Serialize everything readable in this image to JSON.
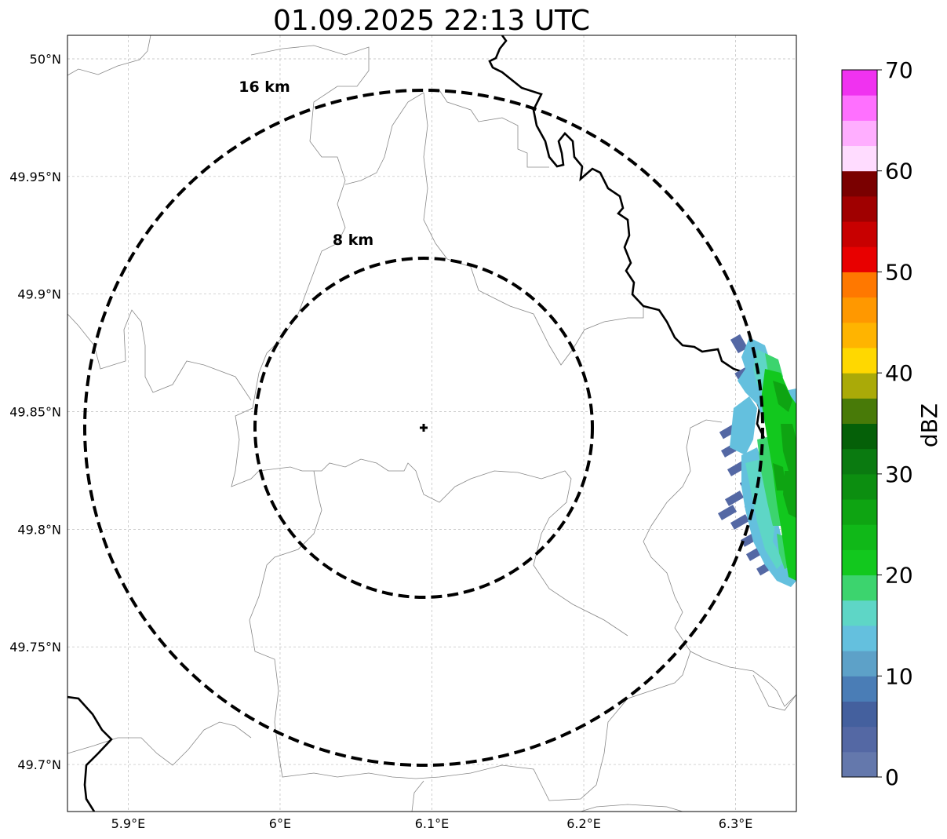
{
  "title": "01.09.2025 22:13 UTC",
  "map": {
    "lon_range": [
      5.86,
      6.34
    ],
    "lat_range": [
      49.68,
      50.01
    ],
    "x_ticks": [
      {
        "value": 5.9,
        "label": "5.9°E"
      },
      {
        "value": 6.0,
        "label": "6°E"
      },
      {
        "value": 6.1,
        "label": "6.1°E"
      },
      {
        "value": 6.2,
        "label": "6.2°E"
      },
      {
        "value": 6.3,
        "label": "6.3°E"
      }
    ],
    "y_ticks": [
      {
        "value": 50.0,
        "label": "50°N"
      },
      {
        "value": 49.95,
        "label": "49.95°N"
      },
      {
        "value": 49.9,
        "label": "49.9°N"
      },
      {
        "value": 49.85,
        "label": "49.85°N"
      },
      {
        "value": 49.8,
        "label": "49.8°N"
      },
      {
        "value": 49.75,
        "label": "49.75°N"
      },
      {
        "value": 49.7,
        "label": "49.7°N"
      }
    ],
    "grid": true,
    "radar_site": {
      "lon": 6.095,
      "lat": 49.843
    },
    "range_rings": [
      {
        "radius_km": 8,
        "label": "8 km"
      },
      {
        "radius_km": 16,
        "label": "16 km"
      }
    ]
  },
  "colorbar": {
    "label": "dBZ",
    "min": 0,
    "max": 70,
    "ticks": [
      "0",
      "10",
      "20",
      "30",
      "40",
      "50",
      "60",
      "70"
    ],
    "colors": [
      "#6478ac",
      "#5468a4",
      "#44609e",
      "#4a7db6",
      "#5da1c8",
      "#64c0de",
      "#5ed6c6",
      "#3cd46e",
      "#12c81e",
      "#10b818",
      "#0ea412",
      "#0c8e10",
      "#0a7a10",
      "#056008",
      "#487a08",
      "#aaaa08",
      "#ffd800",
      "#ffb400",
      "#ff9800",
      "#ff7800",
      "#e80000",
      "#c80000",
      "#a00000",
      "#7a0000",
      "#ffdcff",
      "#ffaeff",
      "#ff70ff",
      "#f032f0"
    ]
  }
}
